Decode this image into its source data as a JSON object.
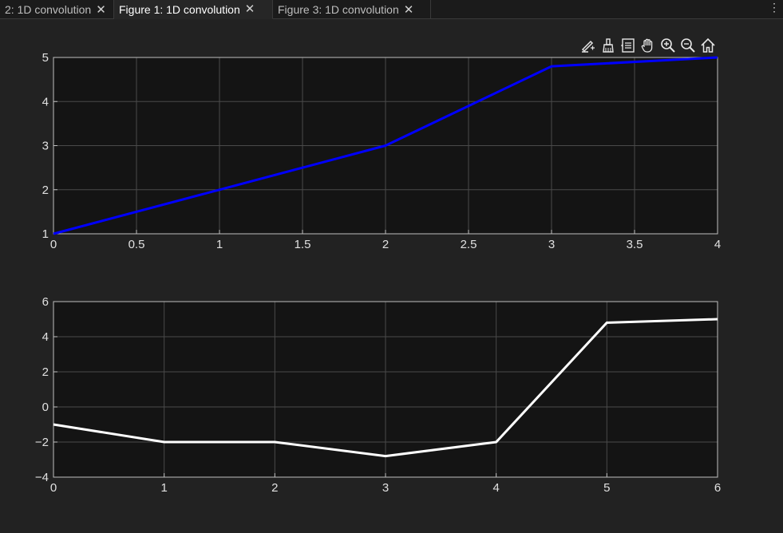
{
  "tabs": [
    {
      "label": "2: 1D convolution",
      "active": false
    },
    {
      "label": "Figure 1: 1D convolution",
      "active": true
    },
    {
      "label": "Figure 3: 1D convolution",
      "active": false
    }
  ],
  "toolbar": {
    "icons": [
      "edit-plot-icon",
      "brush-icon",
      "data-tips-icon",
      "pan-hand-icon",
      "zoom-in-icon",
      "zoom-out-icon",
      "home-icon"
    ]
  },
  "colors": {
    "axes_bg": "#141414",
    "grid": "#4a4a4a",
    "axis_line": "#bfbfbf",
    "tick_text": "#e0e0e0",
    "series1": "#0000ff",
    "series2": "#ffffff"
  },
  "chart_data": [
    {
      "type": "line",
      "title": "",
      "xlabel": "",
      "ylabel": "",
      "xlim": [
        0,
        4
      ],
      "ylim": [
        1,
        5
      ],
      "xticks": [
        0,
        0.5,
        1,
        1.5,
        2,
        2.5,
        3,
        3.5,
        4
      ],
      "yticks": [
        1,
        2,
        3,
        4,
        5
      ],
      "grid": true,
      "series": [
        {
          "color": "#0000ff",
          "x": [
            0,
            1,
            2,
            3,
            4
          ],
          "y": [
            1,
            2,
            3,
            4.8,
            5
          ]
        }
      ]
    },
    {
      "type": "line",
      "title": "",
      "xlabel": "",
      "ylabel": "",
      "xlim": [
        0,
        6
      ],
      "ylim": [
        -4,
        6
      ],
      "xticks": [
        0,
        1,
        2,
        3,
        4,
        5,
        6
      ],
      "yticks": [
        -4,
        -2,
        0,
        2,
        4,
        6
      ],
      "grid": true,
      "series": [
        {
          "color": "#ffffff",
          "x": [
            0,
            1,
            2,
            3,
            4,
            5,
            6
          ],
          "y": [
            -1,
            -2,
            -2,
            -2.8,
            -2,
            4.8,
            5
          ]
        }
      ]
    }
  ]
}
